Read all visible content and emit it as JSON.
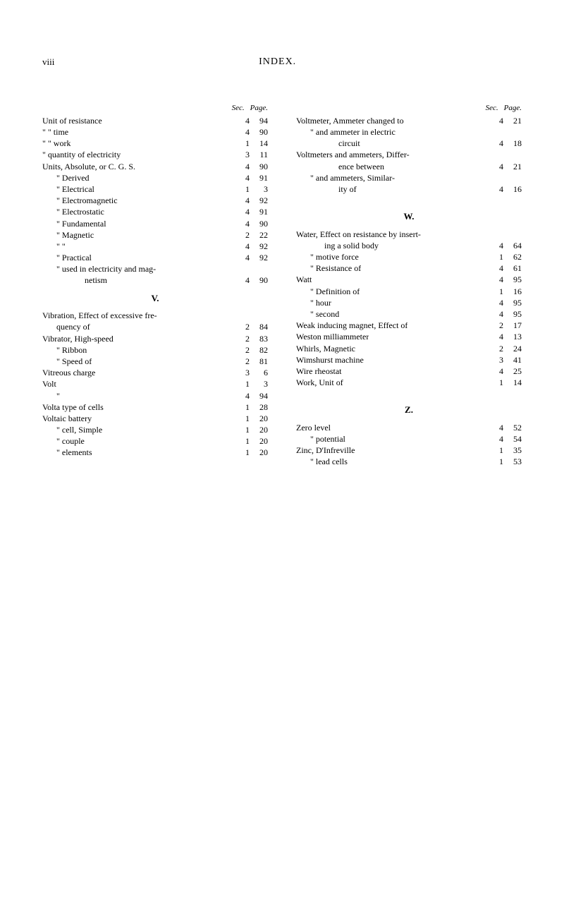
{
  "header": {
    "pageNum": "viii",
    "title": "INDEX."
  },
  "colHeadings": {
    "sec": "Sec.",
    "page": "Page."
  },
  "leftCol": [
    {
      "text": "Unit of resistance",
      "indent": 0,
      "sec": "4",
      "page": "94"
    },
    {
      "text": "\"   \"   time",
      "indent": 0,
      "sec": "4",
      "page": "90"
    },
    {
      "text": "\"   \"   work",
      "indent": 0,
      "sec": "1",
      "page": "14"
    },
    {
      "text": "\"   quantity of electricity",
      "indent": 0,
      "sec": "3",
      "page": "11"
    },
    {
      "text": "Units, Absolute, or C. G. S.",
      "indent": 0,
      "sec": "4",
      "page": "90"
    },
    {
      "text": "\"   Derived",
      "indent": 1,
      "sec": "4",
      "page": "91"
    },
    {
      "text": "\"   Electrical",
      "indent": 1,
      "sec": "1",
      "page": "3"
    },
    {
      "text": "\"   Electromagnetic",
      "indent": 1,
      "sec": "4",
      "page": "92"
    },
    {
      "text": "\"   Electrostatic",
      "indent": 1,
      "sec": "4",
      "page": "91"
    },
    {
      "text": "\"   Fundamental",
      "indent": 1,
      "sec": "4",
      "page": "90"
    },
    {
      "text": "\"   Magnetic",
      "indent": 1,
      "sec": "2",
      "page": "22"
    },
    {
      "text": "\"       \"",
      "indent": 1,
      "sec": "4",
      "page": "92"
    },
    {
      "text": "\"   Practical",
      "indent": 1,
      "sec": "4",
      "page": "92"
    },
    {
      "text": "\"   used in electricity and mag-",
      "indent": 1,
      "sec": "",
      "page": ""
    },
    {
      "text": "netism",
      "indent": 3,
      "sec": "4",
      "page": "90"
    },
    {
      "letter": "V."
    },
    {
      "text": "Vibration, Effect of excessive fre-",
      "indent": 0,
      "sec": "",
      "page": ""
    },
    {
      "text": "quency of",
      "indent": 1,
      "sec": "2",
      "page": "84"
    },
    {
      "text": "Vibrator, High-speed",
      "indent": 0,
      "sec": "2",
      "page": "83"
    },
    {
      "text": "\"       Ribbon",
      "indent": 1,
      "sec": "2",
      "page": "82"
    },
    {
      "text": "\"       Speed of",
      "indent": 1,
      "sec": "2",
      "page": "81"
    },
    {
      "text": "Vitreous charge",
      "indent": 0,
      "sec": "3",
      "page": "6"
    },
    {
      "text": "Volt",
      "indent": 0,
      "sec": "1",
      "page": "3"
    },
    {
      "text": "\"",
      "indent": 1,
      "sec": "4",
      "page": "94"
    },
    {
      "text": "Volta type of cells",
      "indent": 0,
      "sec": "1",
      "page": "28"
    },
    {
      "text": "Voltaic battery",
      "indent": 0,
      "sec": "1",
      "page": "20"
    },
    {
      "text": "\"     cell, Simple",
      "indent": 1,
      "sec": "1",
      "page": "20"
    },
    {
      "text": "\"     couple",
      "indent": 1,
      "sec": "1",
      "page": "20"
    },
    {
      "text": "\"     elements",
      "indent": 1,
      "sec": "1",
      "page": "20"
    }
  ],
  "rightCol": [
    {
      "text": "Voltmeter, Ammeter changed to",
      "indent": 0,
      "sec": "4",
      "page": "21"
    },
    {
      "text": "\"       and ammeter in electric",
      "indent": 1,
      "sec": "",
      "page": ""
    },
    {
      "text": "circuit",
      "indent": 3,
      "sec": "4",
      "page": "18"
    },
    {
      "text": "Voltmeters and ammeters, Differ-",
      "indent": 0,
      "sec": "",
      "page": ""
    },
    {
      "text": "ence between",
      "indent": 3,
      "sec": "4",
      "page": "21"
    },
    {
      "text": "\"       and ammeters, Similar-",
      "indent": 1,
      "sec": "",
      "page": ""
    },
    {
      "text": "ity of",
      "indent": 3,
      "sec": "4",
      "page": "16"
    },
    {
      "spacer": true
    },
    {
      "letter": "W."
    },
    {
      "text": "Water, Effect on resistance by insert-",
      "indent": 0,
      "sec": "",
      "page": ""
    },
    {
      "text": "ing a solid body",
      "indent": 2,
      "sec": "4",
      "page": "64"
    },
    {
      "text": "\"     motive force",
      "indent": 1,
      "sec": "1",
      "page": "62"
    },
    {
      "text": "\"     Resistance of",
      "indent": 1,
      "sec": "4",
      "page": "61"
    },
    {
      "text": "Watt",
      "indent": 0,
      "sec": "4",
      "page": "95"
    },
    {
      "text": "\"   Definition of",
      "indent": 1,
      "sec": "1",
      "page": "16"
    },
    {
      "text": "\"   hour",
      "indent": 1,
      "sec": "4",
      "page": "95"
    },
    {
      "text": "\"   second",
      "indent": 1,
      "sec": "4",
      "page": "95"
    },
    {
      "text": "Weak inducing magnet, Effect of",
      "indent": 0,
      "sec": "2",
      "page": "17"
    },
    {
      "text": "Weston milliammeter",
      "indent": 0,
      "sec": "4",
      "page": "13"
    },
    {
      "text": "Whirls, Magnetic",
      "indent": 0,
      "sec": "2",
      "page": "24"
    },
    {
      "text": "Wimshurst machine",
      "indent": 0,
      "sec": "3",
      "page": "41"
    },
    {
      "text": "Wire rheostat",
      "indent": 0,
      "sec": "4",
      "page": "25"
    },
    {
      "text": "Work, Unit of",
      "indent": 0,
      "sec": "1",
      "page": "14"
    },
    {
      "spacer": true
    },
    {
      "letter": "Z."
    },
    {
      "text": "Zero level",
      "indent": 0,
      "sec": "4",
      "page": "52"
    },
    {
      "text": "\"   potential",
      "indent": 1,
      "sec": "4",
      "page": "54"
    },
    {
      "text": "Zinc, D'Infreville",
      "indent": 0,
      "sec": "1",
      "page": "35"
    },
    {
      "text": "\"   lead cells",
      "indent": 1,
      "sec": "1",
      "page": "53"
    }
  ]
}
